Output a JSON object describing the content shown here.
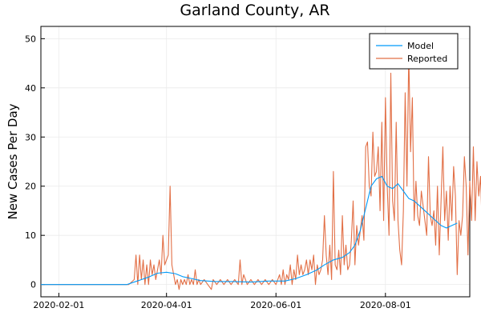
{
  "chart_data": {
    "type": "line",
    "title": "Garland County, AR",
    "xlabel": "",
    "ylabel": "New Cases Per Day",
    "x_range": [
      "2020-01-22",
      "2020-09-17"
    ],
    "ylim": [
      -2.5,
      52.5
    ],
    "x_ticks": [
      {
        "date": "2020-02-01",
        "label": "2020-02-01"
      },
      {
        "date": "2020-04-01",
        "label": "2020-04-01"
      },
      {
        "date": "2020-06-01",
        "label": "2020-06-01"
      },
      {
        "date": "2020-08-01",
        "label": "2020-08-01"
      }
    ],
    "y_ticks": [
      0,
      10,
      20,
      30,
      40,
      50
    ],
    "grid": true,
    "legend_position": "top-right",
    "series": [
      {
        "name": "Model",
        "color": "#009af9",
        "points": [
          [
            "2020-01-22",
            0
          ],
          [
            "2020-03-10",
            0
          ],
          [
            "2020-03-14",
            0.5
          ],
          [
            "2020-03-18",
            1
          ],
          [
            "2020-03-22",
            1.5
          ],
          [
            "2020-03-27",
            2.3
          ],
          [
            "2020-04-01",
            2.5
          ],
          [
            "2020-04-06",
            2.2
          ],
          [
            "2020-04-10",
            1.6
          ],
          [
            "2020-04-15",
            1.2
          ],
          [
            "2020-04-20",
            0.8
          ],
          [
            "2020-04-28",
            0.6
          ],
          [
            "2020-05-08",
            0.6
          ],
          [
            "2020-05-18",
            0.5
          ],
          [
            "2020-05-28",
            0.7
          ],
          [
            "2020-06-06",
            0.7
          ],
          [
            "2020-06-12",
            1.2
          ],
          [
            "2020-06-18",
            2
          ],
          [
            "2020-06-24",
            3
          ],
          [
            "2020-06-28",
            4
          ],
          [
            "2020-07-03",
            5
          ],
          [
            "2020-07-08",
            5.5
          ],
          [
            "2020-07-12",
            6.5
          ],
          [
            "2020-07-15",
            8
          ],
          [
            "2020-07-18",
            11
          ],
          [
            "2020-07-20",
            14
          ],
          [
            "2020-07-22",
            17
          ],
          [
            "2020-07-24",
            20
          ],
          [
            "2020-07-27",
            21.5
          ],
          [
            "2020-07-30",
            22
          ],
          [
            "2020-08-02",
            20
          ],
          [
            "2020-08-05",
            19.5
          ],
          [
            "2020-08-08",
            20.5
          ],
          [
            "2020-08-11",
            19
          ],
          [
            "2020-08-14",
            17.5
          ],
          [
            "2020-08-17",
            17
          ],
          [
            "2020-08-20",
            16
          ],
          [
            "2020-08-23",
            15
          ],
          [
            "2020-08-26",
            14
          ],
          [
            "2020-08-29",
            13
          ],
          [
            "2020-09-01",
            12
          ],
          [
            "2020-09-04",
            11.5
          ],
          [
            "2020-09-07",
            12
          ],
          [
            "2020-09-10",
            12.5
          ]
        ]
      },
      {
        "name": "Reported",
        "color": "#e26f46",
        "points": [
          [
            "2020-01-22",
            0
          ],
          [
            "2020-03-11",
            0
          ],
          [
            "2020-03-14",
            1
          ],
          [
            "2020-03-15",
            6
          ],
          [
            "2020-03-16",
            0
          ],
          [
            "2020-03-17",
            6
          ],
          [
            "2020-03-18",
            1
          ],
          [
            "2020-03-19",
            5
          ],
          [
            "2020-03-20",
            0
          ],
          [
            "2020-03-21",
            4
          ],
          [
            "2020-03-22",
            0
          ],
          [
            "2020-03-23",
            5
          ],
          [
            "2020-03-24",
            2
          ],
          [
            "2020-03-25",
            4
          ],
          [
            "2020-03-26",
            1
          ],
          [
            "2020-03-27",
            3
          ],
          [
            "2020-03-28",
            5
          ],
          [
            "2020-03-29",
            2
          ],
          [
            "2020-03-30",
            10
          ],
          [
            "2020-03-31",
            4
          ],
          [
            "2020-04-01",
            5
          ],
          [
            "2020-04-02",
            6
          ],
          [
            "2020-04-03",
            20
          ],
          [
            "2020-04-04",
            4
          ],
          [
            "2020-04-05",
            2
          ],
          [
            "2020-04-06",
            0
          ],
          [
            "2020-04-07",
            1
          ],
          [
            "2020-04-08",
            -1
          ],
          [
            "2020-04-09",
            1
          ],
          [
            "2020-04-10",
            0
          ],
          [
            "2020-04-11",
            1
          ],
          [
            "2020-04-12",
            0
          ],
          [
            "2020-04-13",
            2
          ],
          [
            "2020-04-14",
            0
          ],
          [
            "2020-04-15",
            1
          ],
          [
            "2020-04-16",
            0
          ],
          [
            "2020-04-17",
            3
          ],
          [
            "2020-04-18",
            0
          ],
          [
            "2020-04-19",
            1
          ],
          [
            "2020-04-20",
            0
          ],
          [
            "2020-04-22",
            1
          ],
          [
            "2020-04-24",
            0
          ],
          [
            "2020-04-26",
            -1
          ],
          [
            "2020-04-27",
            1
          ],
          [
            "2020-04-29",
            0
          ],
          [
            "2020-05-01",
            1
          ],
          [
            "2020-05-03",
            0
          ],
          [
            "2020-05-05",
            1
          ],
          [
            "2020-05-07",
            0
          ],
          [
            "2020-05-09",
            1
          ],
          [
            "2020-05-11",
            0
          ],
          [
            "2020-05-12",
            5
          ],
          [
            "2020-05-13",
            0
          ],
          [
            "2020-05-14",
            2
          ],
          [
            "2020-05-15",
            1
          ],
          [
            "2020-05-16",
            0
          ],
          [
            "2020-05-18",
            1
          ],
          [
            "2020-05-20",
            0
          ],
          [
            "2020-05-22",
            1
          ],
          [
            "2020-05-24",
            0
          ],
          [
            "2020-05-26",
            1
          ],
          [
            "2020-05-28",
            0
          ],
          [
            "2020-05-30",
            1
          ],
          [
            "2020-06-01",
            0
          ],
          [
            "2020-06-03",
            2
          ],
          [
            "2020-06-04",
            0
          ],
          [
            "2020-06-05",
            3
          ],
          [
            "2020-06-06",
            0
          ],
          [
            "2020-06-07",
            2
          ],
          [
            "2020-06-08",
            1
          ],
          [
            "2020-06-09",
            4
          ],
          [
            "2020-06-10",
            0
          ],
          [
            "2020-06-11",
            3
          ],
          [
            "2020-06-12",
            1
          ],
          [
            "2020-06-13",
            6
          ],
          [
            "2020-06-14",
            2
          ],
          [
            "2020-06-15",
            4
          ],
          [
            "2020-06-16",
            2
          ],
          [
            "2020-06-17",
            3
          ],
          [
            "2020-06-18",
            5
          ],
          [
            "2020-06-19",
            2
          ],
          [
            "2020-06-20",
            5
          ],
          [
            "2020-06-21",
            3
          ],
          [
            "2020-06-22",
            6
          ],
          [
            "2020-06-23",
            0
          ],
          [
            "2020-06-24",
            4
          ],
          [
            "2020-06-25",
            2
          ],
          [
            "2020-06-26",
            3
          ],
          [
            "2020-06-27",
            5
          ],
          [
            "2020-06-28",
            14
          ],
          [
            "2020-06-29",
            6
          ],
          [
            "2020-06-30",
            2
          ],
          [
            "2020-07-01",
            8
          ],
          [
            "2020-07-02",
            1
          ],
          [
            "2020-07-03",
            23
          ],
          [
            "2020-07-04",
            4
          ],
          [
            "2020-07-05",
            3
          ],
          [
            "2020-07-06",
            7
          ],
          [
            "2020-07-07",
            2
          ],
          [
            "2020-07-08",
            14
          ],
          [
            "2020-07-09",
            4
          ],
          [
            "2020-07-10",
            8
          ],
          [
            "2020-07-11",
            3
          ],
          [
            "2020-07-12",
            4
          ],
          [
            "2020-07-13",
            9
          ],
          [
            "2020-07-14",
            17
          ],
          [
            "2020-07-15",
            4
          ],
          [
            "2020-07-16",
            12
          ],
          [
            "2020-07-17",
            8
          ],
          [
            "2020-07-18",
            11
          ],
          [
            "2020-07-19",
            14
          ],
          [
            "2020-07-20",
            9
          ],
          [
            "2020-07-21",
            28
          ],
          [
            "2020-07-22",
            29
          ],
          [
            "2020-07-23",
            20
          ],
          [
            "2020-07-24",
            18
          ],
          [
            "2020-07-25",
            31
          ],
          [
            "2020-07-26",
            22
          ],
          [
            "2020-07-27",
            23
          ],
          [
            "2020-07-28",
            28
          ],
          [
            "2020-07-29",
            15
          ],
          [
            "2020-07-30",
            33
          ],
          [
            "2020-07-31",
            13
          ],
          [
            "2020-08-01",
            38
          ],
          [
            "2020-08-02",
            20
          ],
          [
            "2020-08-03",
            10
          ],
          [
            "2020-08-04",
            43
          ],
          [
            "2020-08-05",
            17
          ],
          [
            "2020-08-06",
            13
          ],
          [
            "2020-08-07",
            33
          ],
          [
            "2020-08-08",
            13
          ],
          [
            "2020-08-09",
            7
          ],
          [
            "2020-08-10",
            4
          ],
          [
            "2020-08-11",
            15
          ],
          [
            "2020-08-12",
            39
          ],
          [
            "2020-08-13",
            20
          ],
          [
            "2020-08-14",
            47
          ],
          [
            "2020-08-15",
            27
          ],
          [
            "2020-08-16",
            38
          ],
          [
            "2020-08-17",
            13
          ],
          [
            "2020-08-18",
            21
          ],
          [
            "2020-08-19",
            14
          ],
          [
            "2020-08-20",
            12
          ],
          [
            "2020-08-21",
            19
          ],
          [
            "2020-08-22",
            16
          ],
          [
            "2020-08-23",
            13
          ],
          [
            "2020-08-24",
            10
          ],
          [
            "2020-08-25",
            26
          ],
          [
            "2020-08-26",
            14
          ],
          [
            "2020-08-27",
            12
          ],
          [
            "2020-08-28",
            15
          ],
          [
            "2020-08-29",
            8
          ],
          [
            "2020-08-30",
            20
          ],
          [
            "2020-08-31",
            6
          ],
          [
            "2020-09-01",
            17
          ],
          [
            "2020-09-02",
            28
          ],
          [
            "2020-09-03",
            13
          ],
          [
            "2020-09-04",
            19
          ],
          [
            "2020-09-05",
            9
          ],
          [
            "2020-09-06",
            20
          ],
          [
            "2020-09-07",
            13
          ],
          [
            "2020-09-08",
            24
          ],
          [
            "2020-09-09",
            18
          ],
          [
            "2020-09-10",
            2
          ],
          [
            "2020-09-11",
            13
          ],
          [
            "2020-09-12",
            10
          ],
          [
            "2020-09-13",
            14
          ],
          [
            "2020-09-14",
            26
          ],
          [
            "2020-09-15",
            20
          ],
          [
            "2020-09-16",
            6
          ],
          [
            "2020-09-17",
            21
          ],
          [
            "2020-09-18",
            13
          ],
          [
            "2020-09-19",
            28
          ],
          [
            "2020-09-20",
            13
          ],
          [
            "2020-09-21",
            25
          ],
          [
            "2020-09-22",
            18
          ],
          [
            "2020-09-23",
            22
          ],
          [
            "2020-09-24",
            10
          ],
          [
            "2020-09-25",
            4
          ]
        ]
      }
    ]
  }
}
